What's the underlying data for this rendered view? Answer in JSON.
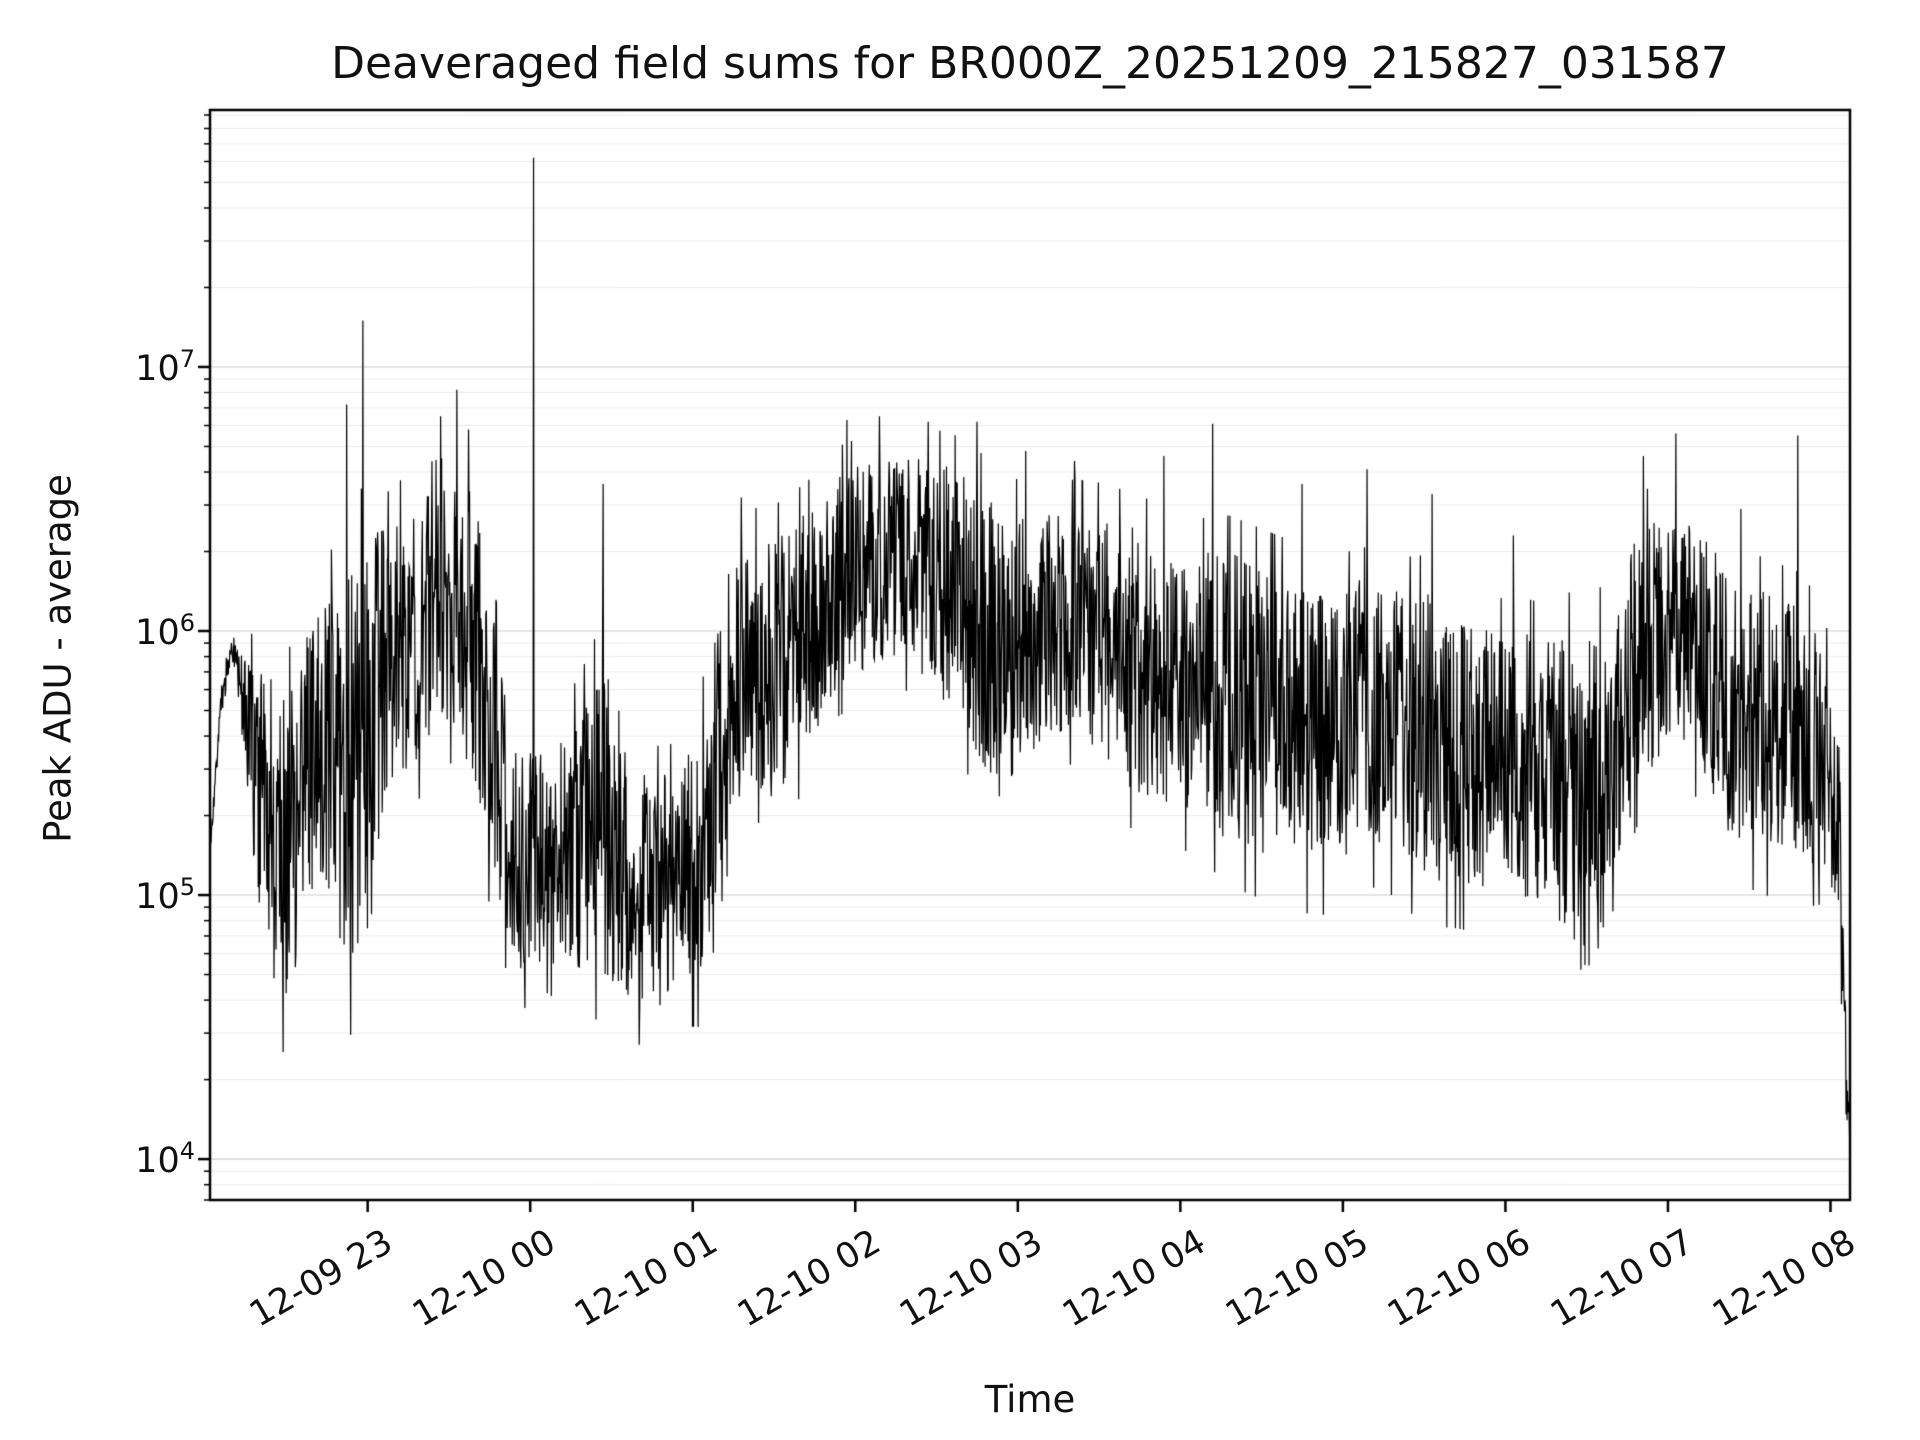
{
  "chart_data": {
    "type": "line",
    "title": "Deaveraged field sums for BR000Z_20251209_215827_031587",
    "xlabel": "Time",
    "ylabel": "Peak ADU - average",
    "yscale": "log",
    "line_color": "#000000",
    "background_color": "#ffffff",
    "grid": {
      "major_color": "#dcdcdc",
      "minor_color": "#ececec",
      "grid_on": true
    },
    "ylim": [
      7000,
      94000000
    ],
    "y_tick_exponents": [
      4,
      5,
      6,
      7
    ],
    "x_range_hours": [
      22.03,
      32.12
    ],
    "x_ticks": [
      {
        "hour": 23,
        "label": "12-09 23"
      },
      {
        "hour": 24,
        "label": "12-10 00"
      },
      {
        "hour": 25,
        "label": "12-10 01"
      },
      {
        "hour": 26,
        "label": "12-10 02"
      },
      {
        "hour": 27,
        "label": "12-10 03"
      },
      {
        "hour": 28,
        "label": "12-10 04"
      },
      {
        "hour": 29,
        "label": "12-10 05"
      },
      {
        "hour": 30,
        "label": "12-10 06"
      },
      {
        "hour": 31,
        "label": "12-10 07"
      },
      {
        "hour": 32,
        "label": "12-10 08"
      }
    ],
    "noise_seed": 7,
    "points_per_hour": 320,
    "envelope_log10": [
      [
        22.03,
        5.15,
        0.04
      ],
      [
        22.1,
        5.75,
        0.05
      ],
      [
        22.17,
        5.95,
        0.05
      ],
      [
        22.25,
        5.65,
        0.25
      ],
      [
        22.35,
        5.35,
        0.55
      ],
      [
        22.5,
        5.15,
        0.6
      ],
      [
        22.62,
        5.45,
        0.55
      ],
      [
        22.75,
        5.6,
        0.55
      ],
      [
        22.88,
        5.45,
        0.75
      ],
      [
        23.0,
        5.55,
        0.85
      ],
      [
        23.12,
        5.9,
        0.5
      ],
      [
        23.3,
        6.0,
        0.5
      ],
      [
        23.5,
        6.1,
        0.45
      ],
      [
        23.65,
        6.0,
        0.55
      ],
      [
        23.8,
        5.45,
        0.5
      ],
      [
        23.95,
        5.15,
        0.45
      ],
      [
        24.1,
        5.15,
        0.4
      ],
      [
        24.3,
        5.2,
        0.5
      ],
      [
        24.45,
        5.3,
        0.6
      ],
      [
        24.6,
        5.1,
        0.5
      ],
      [
        24.75,
        5.0,
        0.45
      ],
      [
        24.9,
        5.05,
        0.42
      ],
      [
        25.05,
        5.15,
        0.5
      ],
      [
        25.2,
        5.7,
        0.5
      ],
      [
        25.35,
        5.9,
        0.45
      ],
      [
        25.5,
        5.85,
        0.5
      ],
      [
        25.7,
        6.0,
        0.45
      ],
      [
        25.9,
        6.2,
        0.4
      ],
      [
        26.1,
        6.25,
        0.4
      ],
      [
        26.3,
        6.28,
        0.38
      ],
      [
        26.5,
        6.2,
        0.45
      ],
      [
        26.7,
        6.1,
        0.5
      ],
      [
        26.9,
        5.9,
        0.55
      ],
      [
        27.1,
        6.0,
        0.45
      ],
      [
        27.3,
        6.05,
        0.42
      ],
      [
        27.5,
        6.0,
        0.45
      ],
      [
        27.7,
        5.9,
        0.5
      ],
      [
        27.9,
        5.85,
        0.5
      ],
      [
        28.1,
        5.8,
        0.5
      ],
      [
        28.3,
        5.75,
        0.55
      ],
      [
        28.5,
        5.7,
        0.55
      ],
      [
        28.7,
        5.65,
        0.55
      ],
      [
        28.9,
        5.6,
        0.52
      ],
      [
        29.1,
        5.7,
        0.5
      ],
      [
        29.3,
        5.65,
        0.5
      ],
      [
        29.5,
        5.6,
        0.55
      ],
      [
        29.7,
        5.55,
        0.52
      ],
      [
        29.9,
        5.5,
        0.5
      ],
      [
        30.1,
        5.5,
        0.5
      ],
      [
        30.3,
        5.45,
        0.52
      ],
      [
        30.5,
        5.35,
        0.68
      ],
      [
        30.65,
        5.45,
        0.55
      ],
      [
        30.8,
        5.9,
        0.5
      ],
      [
        31.0,
        6.0,
        0.45
      ],
      [
        31.2,
        5.95,
        0.45
      ],
      [
        31.4,
        5.7,
        0.5
      ],
      [
        31.6,
        5.65,
        0.5
      ],
      [
        31.8,
        5.6,
        0.5
      ],
      [
        31.95,
        5.55,
        0.45
      ],
      [
        32.05,
        5.3,
        0.35
      ],
      [
        32.1,
        4.3,
        0.15
      ],
      [
        32.12,
        4.08,
        0.05
      ]
    ],
    "spikes": [
      [
        22.87,
        7200000
      ],
      [
        22.97,
        15000000
      ],
      [
        23.45,
        6500000
      ],
      [
        23.55,
        8200000
      ],
      [
        23.62,
        5800000
      ],
      [
        24.02,
        62000000
      ],
      [
        24.45,
        3600000
      ],
      [
        25.3,
        3200000
      ],
      [
        25.95,
        6300000
      ],
      [
        26.15,
        6500000
      ],
      [
        26.45,
        6200000
      ],
      [
        26.75,
        6200000
      ],
      [
        27.05,
        4800000
      ],
      [
        27.35,
        4400000
      ],
      [
        27.9,
        4600000
      ],
      [
        28.2,
        6100000
      ],
      [
        28.75,
        3600000
      ],
      [
        29.15,
        4100000
      ],
      [
        29.55,
        3300000
      ],
      [
        30.05,
        2300000
      ],
      [
        30.85,
        4600000
      ],
      [
        31.05,
        5600000
      ],
      [
        31.45,
        2900000
      ],
      [
        31.8,
        5500000
      ]
    ]
  }
}
